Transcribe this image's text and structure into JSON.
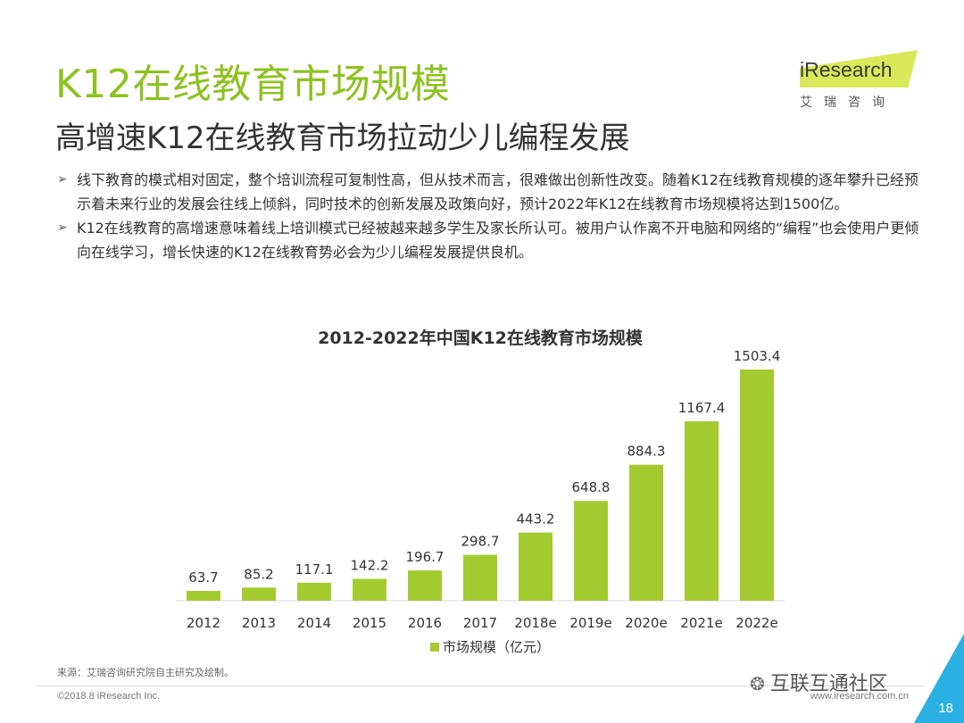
{
  "header": {
    "title": "K12在线教育市场规模",
    "subtitle": "高增速K12在线教育市场拉动少儿编程发展"
  },
  "logo": {
    "text": "iResearch",
    "subtext": "艾瑞咨询"
  },
  "bullets": [
    "线下教育的模式相对固定，整个培训流程可复制性高，但从技术而言，很难做出创新性改变。随着K12在线教育规模的逐年攀升已经预示着未来行业的发展会往线上倾斜，同时技术的创新发展及政策向好，预计2022年K12在线教育市场规模将达到1500亿。",
    "K12在线教育的高增速意味着线上培训模式已经被越来越多学生及家长所认可。被用户认作离不开电脑和网络的“编程”也会使用户更倾向在线学习，增长快速的K12在线教育势必会为少儿编程发展提供良机。"
  ],
  "chart_data": {
    "type": "bar",
    "title": "2012-2022年中国K12在线教育市场规模",
    "categories": [
      "2012",
      "2013",
      "2014",
      "2015",
      "2016",
      "2017",
      "2018e",
      "2019e",
      "2020e",
      "2021e",
      "2022e"
    ],
    "series": [
      {
        "name": "市场规模（亿元）",
        "values": [
          63.7,
          85.2,
          117.1,
          142.2,
          196.7,
          298.7,
          443.2,
          648.8,
          884.3,
          1167.4,
          1503.4
        ]
      }
    ],
    "value_labels": [
      "63.7",
      "85.2",
      "117.1",
      "142.2",
      "196.7",
      "298.7",
      "443.2",
      "648.8",
      "884.3",
      "1167.4",
      "1503.4"
    ],
    "color": "#a3cb30",
    "ylim": [
      0,
      1503.4
    ],
    "grid": false,
    "legend_position": "bottom"
  },
  "footer": {
    "source": "来源：艾瑞咨询研究院自主研究及绘制。",
    "copyright": "©2018.8 iResearch Inc.",
    "website": "www.iresearch.com.cn",
    "watermark": "互联互通社区",
    "page_number": "18"
  },
  "icons": {
    "wechat": "wechat-icon"
  },
  "colors": {
    "title_green": "#8dc21f",
    "accent_blue": "#2ab0e3"
  }
}
